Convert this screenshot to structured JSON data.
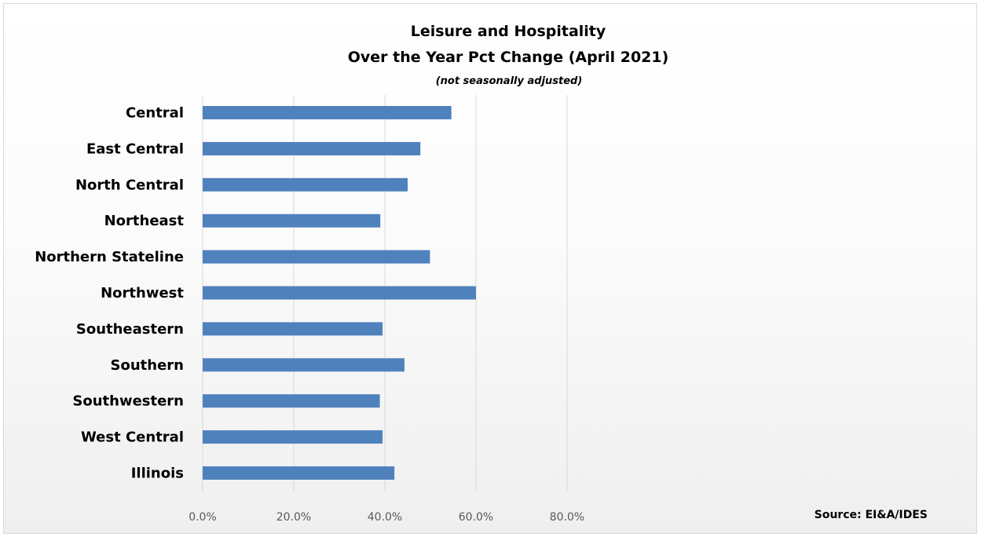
{
  "chart_data": {
    "type": "bar",
    "orientation": "horizontal",
    "title": "Leisure and Hospitality",
    "title_line2": "Over the Year Pct Change (April 2021)",
    "subtitle": "(not seasonally adjusted)",
    "source": "Source: EI&A/IDES",
    "categories": [
      "Central",
      "East Central",
      "North Central",
      "Northeast",
      "Northern Stateline",
      "Northwest",
      "Southeastern",
      "Southern",
      "Southwestern",
      "West Central",
      "Illinois"
    ],
    "values": [
      54.6,
      47.8,
      45.0,
      39.0,
      49.9,
      60.0,
      39.5,
      44.3,
      38.9,
      39.5,
      42.1
    ],
    "value_format": "percent",
    "xlim": [
      0,
      80
    ],
    "xticks": [
      0,
      20,
      40,
      60,
      80
    ],
    "xtick_labels": [
      "0.0%",
      "20.0%",
      "40.0%",
      "60.0%",
      "80.0%"
    ],
    "grid": "vertical",
    "legend": "none",
    "bar_color": "#4f81bd",
    "grid_color": "#d9d9d9"
  }
}
